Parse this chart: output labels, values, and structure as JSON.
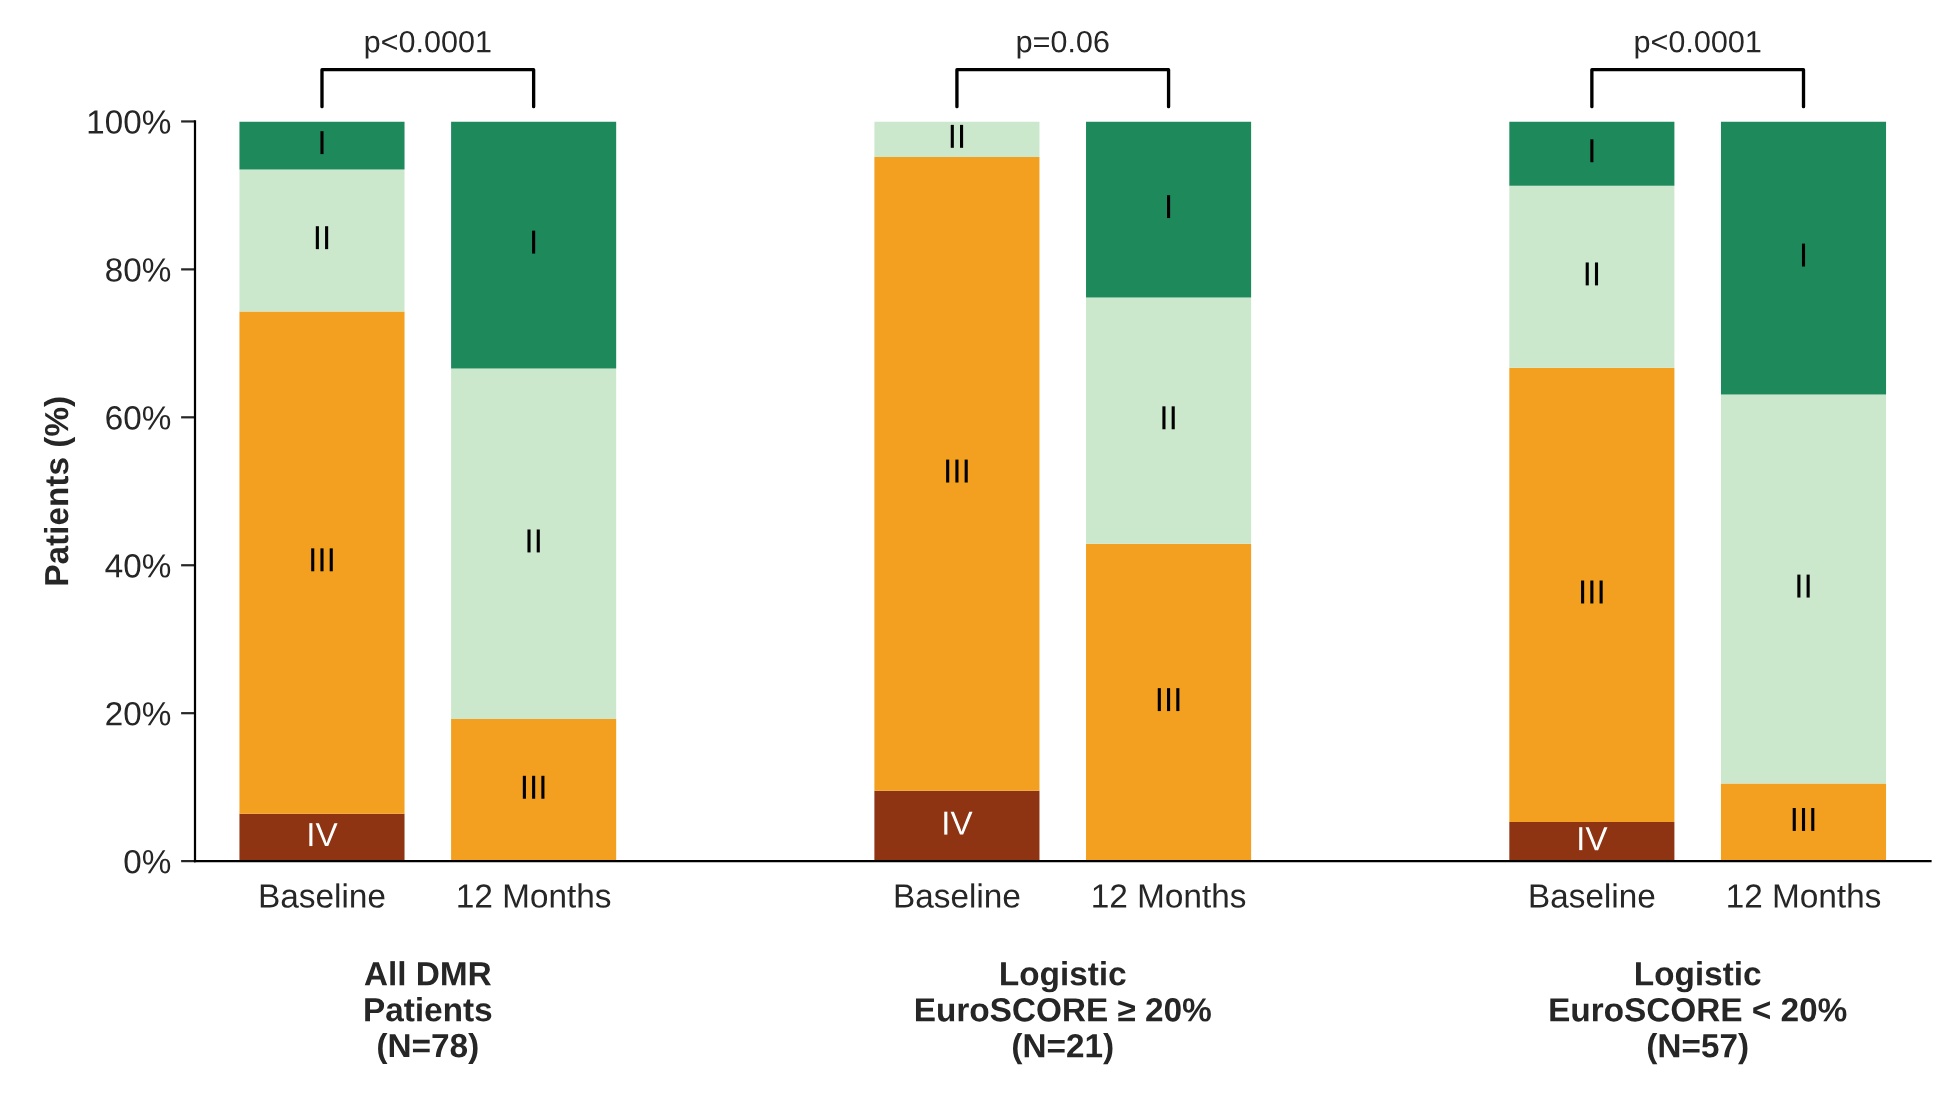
{
  "chart_data": {
    "type": "bar",
    "stacked": true,
    "ylabel": "Patients (%)",
    "categories": [
      "Baseline",
      "12 Months",
      null,
      "Baseline",
      "12 Months",
      null,
      "Baseline",
      "12 Months"
    ],
    "series": [
      {
        "name": "IV",
        "color": "#8e3412",
        "values": [
          6.4,
          0,
          null,
          9.5,
          0,
          null,
          5.3,
          0
        ]
      },
      {
        "name": "III",
        "color": "#f3a020",
        "values": [
          67.9,
          19.2,
          null,
          85.7,
          42.9,
          null,
          61.4,
          10.5
        ]
      },
      {
        "name": "II",
        "color": "#cbe8cc",
        "values": [
          19.2,
          47.4,
          null,
          4.8,
          33.3,
          null,
          24.6,
          52.6
        ]
      },
      {
        "name": "I",
        "color": "#1e8a5c",
        "values": [
          6.5,
          33.4,
          null,
          0,
          23.8,
          null,
          8.7,
          36.9
        ]
      }
    ],
    "ylim": [
      0,
      100
    ],
    "yticks": [
      {
        "value": 0,
        "label": "0%"
      },
      {
        "value": 20,
        "label": "20%"
      },
      {
        "value": 40,
        "label": "40%"
      },
      {
        "value": 60,
        "label": "60%"
      },
      {
        "value": 80,
        "label": "80%"
      },
      {
        "value": 100,
        "label": "100%"
      }
    ],
    "grid": false,
    "legend": false,
    "annotations": [
      "p<0.0001",
      "p=0.06",
      "p<0.0001",
      "All DMR\nPatients\n(N=78)",
      "Logistic\nEuroSCORE ≥ 20%\n(N=21)",
      "Logistic\nEuroSCORE < 20%\n(N=57)"
    ]
  }
}
